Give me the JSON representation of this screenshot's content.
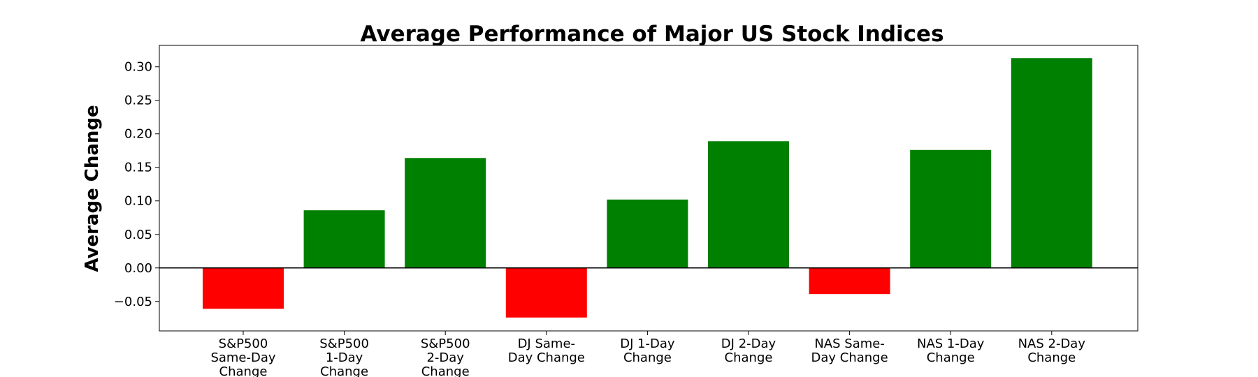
{
  "chart_data": {
    "type": "bar",
    "title": "Average Performance of Major US Stock Indices",
    "xlabel": "",
    "ylabel": "Average Change",
    "categories": [
      "S&P500 Same-Day Change",
      "S&P500 1-Day Change",
      "S&P500 2-Day Change",
      "DJ Same-Day Change",
      "DJ 1-Day Change",
      "DJ 2-Day Change",
      "NAS Same-Day Change",
      "NAS 1-Day Change",
      "NAS 2-Day Change"
    ],
    "category_label_lines": [
      [
        "S&P500",
        "Same-Day",
        "Change"
      ],
      [
        "S&P500",
        "1-Day",
        "Change"
      ],
      [
        "S&P500",
        "2-Day",
        "Change"
      ],
      [
        "DJ Same-",
        "Day Change"
      ],
      [
        "DJ 1-Day",
        "Change"
      ],
      [
        "DJ 2-Day",
        "Change"
      ],
      [
        "NAS Same-",
        "Day Change"
      ],
      [
        "NAS 1-Day",
        "Change"
      ],
      [
        "NAS 2-Day",
        "Change"
      ]
    ],
    "values": [
      -0.061,
      0.086,
      0.164,
      -0.074,
      0.102,
      0.189,
      -0.039,
      0.176,
      0.313
    ],
    "ylim": [
      -0.094,
      0.332
    ],
    "yticks": [
      -0.05,
      0.0,
      0.05,
      0.1,
      0.15,
      0.2,
      0.25,
      0.3
    ],
    "ytick_labels": [
      "−0.05",
      "0.00",
      "0.05",
      "0.10",
      "0.15",
      "0.20",
      "0.25",
      "0.30"
    ],
    "grid": false,
    "legend": "none",
    "colors": {
      "positive": "#008000",
      "negative": "#ff0000",
      "axis": "#000000",
      "zero_line": "#000000"
    }
  }
}
